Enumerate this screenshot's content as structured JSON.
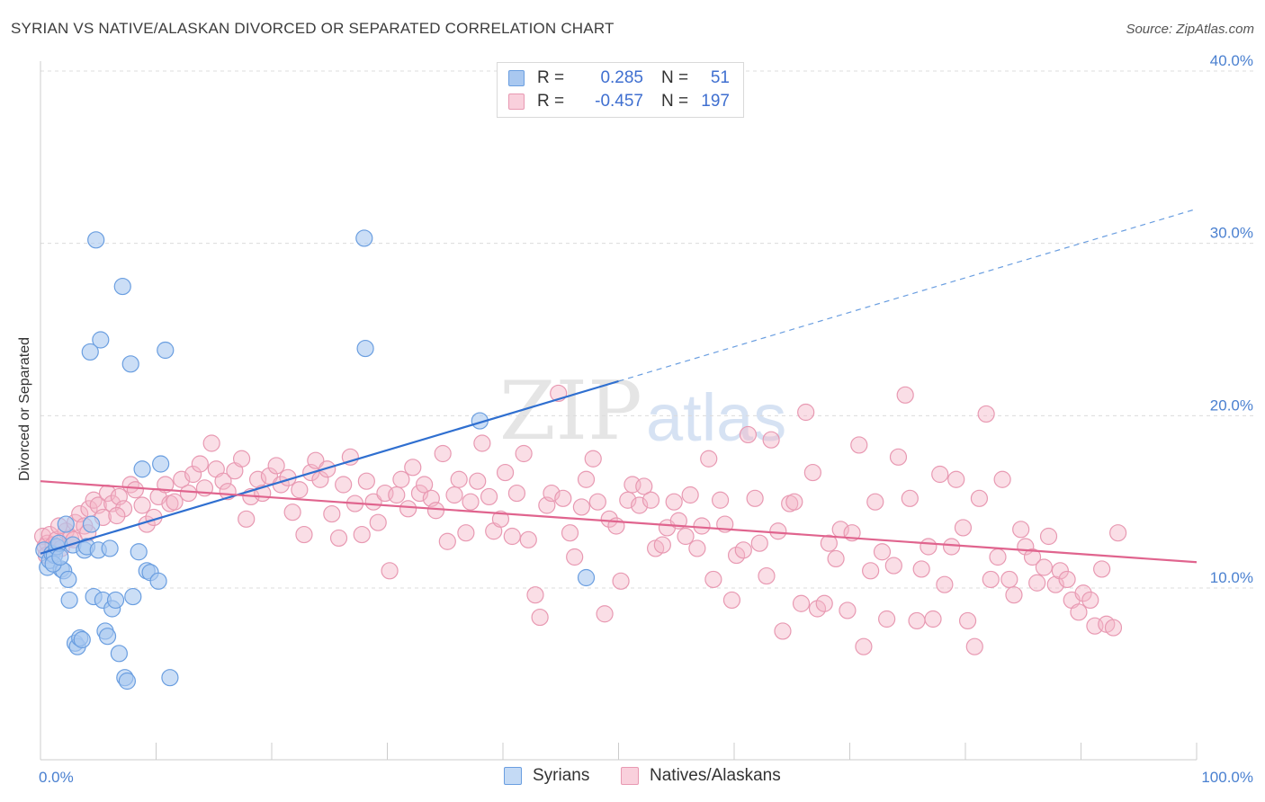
{
  "header": {
    "title": "SYRIAN VS NATIVE/ALASKAN DIVORCED OR SEPARATED CORRELATION CHART",
    "source": "Source: ZipAtlas.com"
  },
  "watermark": {
    "zip": "ZIP",
    "atlas": "atlas"
  },
  "legend": {
    "rows": [
      {
        "r_label": "R =",
        "r_value": "0.285",
        "n_label": "N =",
        "n_value": "51",
        "color": "#a9c8f0"
      },
      {
        "r_label": "R =",
        "r_value": "-0.457",
        "n_label": "N =",
        "n_value": "197",
        "color": "#f4b6c8"
      }
    ]
  },
  "bottom_legend": {
    "syrians": "Syrians",
    "natives": "Natives/Alaskans"
  },
  "chart_data": {
    "type": "scatter",
    "title": "SYRIAN VS NATIVE/ALASKAN DIVORCED OR SEPARATED CORRELATION CHART",
    "ylabel": "Divorced or Separated",
    "xlabel": "",
    "xlim": [
      0,
      100
    ],
    "ylim": [
      0,
      42
    ],
    "x_tick_labels": [
      "0.0%",
      "100.0%"
    ],
    "y_ticks": [
      10,
      20,
      30,
      40
    ],
    "y_tick_labels": [
      "10.0%",
      "20.0%",
      "30.0%",
      "40.0%"
    ],
    "grid": true,
    "series": [
      {
        "name": "Syrians",
        "color": "#6a9ee0",
        "fill": "#a9c8f0",
        "R": 0.285,
        "N": 51,
        "trend": {
          "x": [
            0,
            50
          ],
          "y": [
            12.0,
            22.0
          ],
          "extended_to": {
            "x": 100,
            "y": 32.0
          }
        },
        "points": [
          [
            0.3,
            12.2
          ],
          [
            0.6,
            11.2
          ],
          [
            0.8,
            11.6
          ],
          [
            1.0,
            12.0
          ],
          [
            1.2,
            11.9
          ],
          [
            1.4,
            12.4
          ],
          [
            1.6,
            12.6
          ],
          [
            1.8,
            11.1
          ],
          [
            2.0,
            11.0
          ],
          [
            2.2,
            13.7
          ],
          [
            2.4,
            10.5
          ],
          [
            2.5,
            9.3
          ],
          [
            2.8,
            12.5
          ],
          [
            3.0,
            6.8
          ],
          [
            3.2,
            6.6
          ],
          [
            3.4,
            7.1
          ],
          [
            3.6,
            7.0
          ],
          [
            3.8,
            12.2
          ],
          [
            4.0,
            12.4
          ],
          [
            4.4,
            13.7
          ],
          [
            4.6,
            9.5
          ],
          [
            4.8,
            30.2
          ],
          [
            5.0,
            12.2
          ],
          [
            5.2,
            24.4
          ],
          [
            5.4,
            9.3
          ],
          [
            5.6,
            7.5
          ],
          [
            5.8,
            7.2
          ],
          [
            6.0,
            12.3
          ],
          [
            6.2,
            8.8
          ],
          [
            6.5,
            9.3
          ],
          [
            6.8,
            6.2
          ],
          [
            7.1,
            27.5
          ],
          [
            7.3,
            4.8
          ],
          [
            7.5,
            4.6
          ],
          [
            7.8,
            23.0
          ],
          [
            8.0,
            9.5
          ],
          [
            8.5,
            12.1
          ],
          [
            8.8,
            16.9
          ],
          [
            9.2,
            11.0
          ],
          [
            9.5,
            10.9
          ],
          [
            10.2,
            10.4
          ],
          [
            10.4,
            17.2
          ],
          [
            10.8,
            23.8
          ],
          [
            11.2,
            4.8
          ],
          [
            28.0,
            30.3
          ],
          [
            28.1,
            23.9
          ],
          [
            38.0,
            19.7
          ],
          [
            47.2,
            10.6
          ],
          [
            4.3,
            23.7
          ],
          [
            1.1,
            11.4
          ],
          [
            1.7,
            11.8
          ]
        ]
      },
      {
        "name": "Natives/Alaskans",
        "color": "#e06a94",
        "fill": "#f4b6c8",
        "R": -0.457,
        "N": 197,
        "trend": {
          "x": [
            0,
            100
          ],
          "y": [
            16.2,
            11.5
          ]
        },
        "points": [
          [
            0.2,
            13.0
          ],
          [
            0.4,
            12.4
          ],
          [
            0.6,
            12.6
          ],
          [
            0.8,
            13.1
          ],
          [
            1.1,
            12.5
          ],
          [
            1.4,
            12.8
          ],
          [
            1.8,
            12.3
          ],
          [
            2.2,
            13.3
          ],
          [
            2.6,
            12.9
          ],
          [
            3.0,
            13.8
          ],
          [
            3.4,
            14.3
          ],
          [
            3.8,
            13.6
          ],
          [
            4.2,
            14.6
          ],
          [
            4.6,
            15.1
          ],
          [
            5.0,
            14.8
          ],
          [
            5.4,
            14.1
          ],
          [
            5.8,
            15.5
          ],
          [
            6.2,
            14.9
          ],
          [
            6.8,
            15.3
          ],
          [
            7.2,
            14.6
          ],
          [
            7.8,
            16.0
          ],
          [
            8.2,
            15.7
          ],
          [
            8.8,
            14.8
          ],
          [
            9.2,
            13.7
          ],
          [
            9.8,
            14.1
          ],
          [
            10.2,
            15.3
          ],
          [
            10.8,
            16.0
          ],
          [
            11.2,
            14.9
          ],
          [
            11.6,
            15.0
          ],
          [
            12.2,
            16.3
          ],
          [
            12.8,
            15.5
          ],
          [
            13.2,
            16.6
          ],
          [
            13.8,
            17.2
          ],
          [
            14.2,
            15.8
          ],
          [
            14.8,
            18.4
          ],
          [
            15.2,
            16.9
          ],
          [
            15.8,
            16.2
          ],
          [
            16.2,
            15.6
          ],
          [
            16.8,
            16.8
          ],
          [
            17.4,
            17.5
          ],
          [
            17.8,
            14.0
          ],
          [
            18.2,
            15.3
          ],
          [
            18.8,
            16.3
          ],
          [
            19.2,
            15.5
          ],
          [
            19.8,
            16.5
          ],
          [
            20.4,
            17.1
          ],
          [
            20.8,
            16.0
          ],
          [
            21.4,
            16.4
          ],
          [
            21.8,
            14.4
          ],
          [
            22.4,
            15.7
          ],
          [
            22.8,
            13.1
          ],
          [
            23.4,
            16.7
          ],
          [
            23.8,
            17.4
          ],
          [
            24.2,
            16.3
          ],
          [
            24.8,
            16.9
          ],
          [
            25.2,
            14.3
          ],
          [
            25.8,
            12.9
          ],
          [
            26.2,
            16.0
          ],
          [
            26.8,
            17.6
          ],
          [
            27.2,
            14.9
          ],
          [
            27.8,
            13.1
          ],
          [
            28.2,
            16.2
          ],
          [
            28.8,
            15.0
          ],
          [
            29.2,
            13.8
          ],
          [
            29.8,
            15.5
          ],
          [
            30.2,
            11.0
          ],
          [
            30.8,
            15.4
          ],
          [
            31.2,
            16.3
          ],
          [
            31.8,
            14.6
          ],
          [
            32.2,
            17.0
          ],
          [
            32.8,
            15.5
          ],
          [
            33.2,
            16.0
          ],
          [
            33.8,
            15.2
          ],
          [
            34.2,
            14.5
          ],
          [
            34.8,
            17.8
          ],
          [
            35.2,
            12.7
          ],
          [
            35.8,
            15.4
          ],
          [
            36.2,
            16.3
          ],
          [
            36.8,
            13.2
          ],
          [
            37.2,
            15.0
          ],
          [
            37.8,
            16.2
          ],
          [
            38.2,
            18.4
          ],
          [
            38.8,
            15.3
          ],
          [
            39.2,
            13.3
          ],
          [
            39.8,
            14.0
          ],
          [
            40.2,
            16.7
          ],
          [
            40.8,
            13.0
          ],
          [
            41.2,
            15.5
          ],
          [
            41.8,
            17.8
          ],
          [
            42.2,
            12.8
          ],
          [
            42.8,
            9.6
          ],
          [
            43.2,
            8.3
          ],
          [
            43.8,
            14.8
          ],
          [
            44.2,
            15.5
          ],
          [
            44.8,
            21.3
          ],
          [
            45.2,
            15.2
          ],
          [
            45.8,
            13.2
          ],
          [
            46.2,
            11.8
          ],
          [
            46.8,
            14.7
          ],
          [
            47.2,
            16.3
          ],
          [
            47.8,
            17.5
          ],
          [
            48.2,
            15.0
          ],
          [
            48.8,
            8.5
          ],
          [
            49.2,
            14.0
          ],
          [
            49.8,
            13.6
          ],
          [
            50.2,
            10.4
          ],
          [
            50.8,
            15.1
          ],
          [
            51.2,
            16.0
          ],
          [
            51.8,
            14.8
          ],
          [
            52.2,
            15.9
          ],
          [
            52.8,
            15.1
          ],
          [
            53.2,
            12.3
          ],
          [
            53.8,
            12.5
          ],
          [
            54.2,
            13.5
          ],
          [
            54.8,
            15.0
          ],
          [
            55.2,
            13.9
          ],
          [
            55.8,
            13.0
          ],
          [
            56.2,
            15.4
          ],
          [
            56.8,
            12.3
          ],
          [
            57.2,
            13.6
          ],
          [
            57.8,
            17.5
          ],
          [
            58.2,
            10.5
          ],
          [
            58.8,
            15.1
          ],
          [
            59.2,
            13.7
          ],
          [
            59.8,
            9.3
          ],
          [
            60.2,
            11.9
          ],
          [
            60.8,
            12.2
          ],
          [
            61.2,
            18.9
          ],
          [
            61.8,
            15.2
          ],
          [
            62.2,
            12.6
          ],
          [
            62.8,
            10.7
          ],
          [
            63.2,
            18.6
          ],
          [
            63.8,
            13.3
          ],
          [
            64.2,
            7.5
          ],
          [
            64.8,
            14.9
          ],
          [
            65.2,
            15.0
          ],
          [
            65.8,
            9.1
          ],
          [
            66.2,
            20.2
          ],
          [
            66.8,
            16.7
          ],
          [
            67.2,
            8.8
          ],
          [
            67.8,
            9.1
          ],
          [
            68.2,
            12.6
          ],
          [
            68.8,
            11.7
          ],
          [
            69.2,
            13.4
          ],
          [
            69.8,
            8.7
          ],
          [
            70.2,
            13.2
          ],
          [
            70.8,
            18.3
          ],
          [
            71.2,
            6.6
          ],
          [
            71.8,
            11.0
          ],
          [
            72.2,
            15.0
          ],
          [
            72.8,
            12.1
          ],
          [
            73.2,
            8.2
          ],
          [
            73.8,
            11.3
          ],
          [
            74.2,
            17.6
          ],
          [
            74.8,
            21.2
          ],
          [
            75.2,
            15.2
          ],
          [
            75.8,
            8.1
          ],
          [
            76.2,
            11.1
          ],
          [
            76.8,
            12.4
          ],
          [
            77.2,
            8.2
          ],
          [
            77.8,
            16.6
          ],
          [
            78.2,
            10.2
          ],
          [
            78.8,
            12.4
          ],
          [
            79.2,
            16.3
          ],
          [
            79.8,
            13.5
          ],
          [
            80.2,
            8.1
          ],
          [
            80.8,
            6.6
          ],
          [
            81.2,
            15.2
          ],
          [
            81.8,
            20.1
          ],
          [
            82.2,
            10.5
          ],
          [
            82.8,
            11.8
          ],
          [
            83.2,
            16.3
          ],
          [
            83.8,
            10.5
          ],
          [
            84.2,
            9.6
          ],
          [
            84.8,
            13.4
          ],
          [
            85.2,
            12.4
          ],
          [
            85.8,
            11.8
          ],
          [
            86.2,
            10.3
          ],
          [
            86.8,
            11.2
          ],
          [
            87.2,
            13.0
          ],
          [
            87.8,
            10.2
          ],
          [
            88.2,
            11.0
          ],
          [
            88.8,
            10.5
          ],
          [
            89.2,
            9.3
          ],
          [
            89.8,
            8.6
          ],
          [
            90.2,
            9.7
          ],
          [
            90.8,
            9.3
          ],
          [
            91.2,
            7.8
          ],
          [
            91.8,
            11.1
          ],
          [
            92.2,
            7.9
          ],
          [
            92.8,
            7.7
          ],
          [
            93.2,
            13.2
          ],
          [
            0.5,
            11.9
          ],
          [
            1.6,
            13.6
          ],
          [
            2.9,
            12.8
          ],
          [
            4.1,
            13.2
          ],
          [
            6.6,
            14.2
          ]
        ]
      }
    ]
  }
}
